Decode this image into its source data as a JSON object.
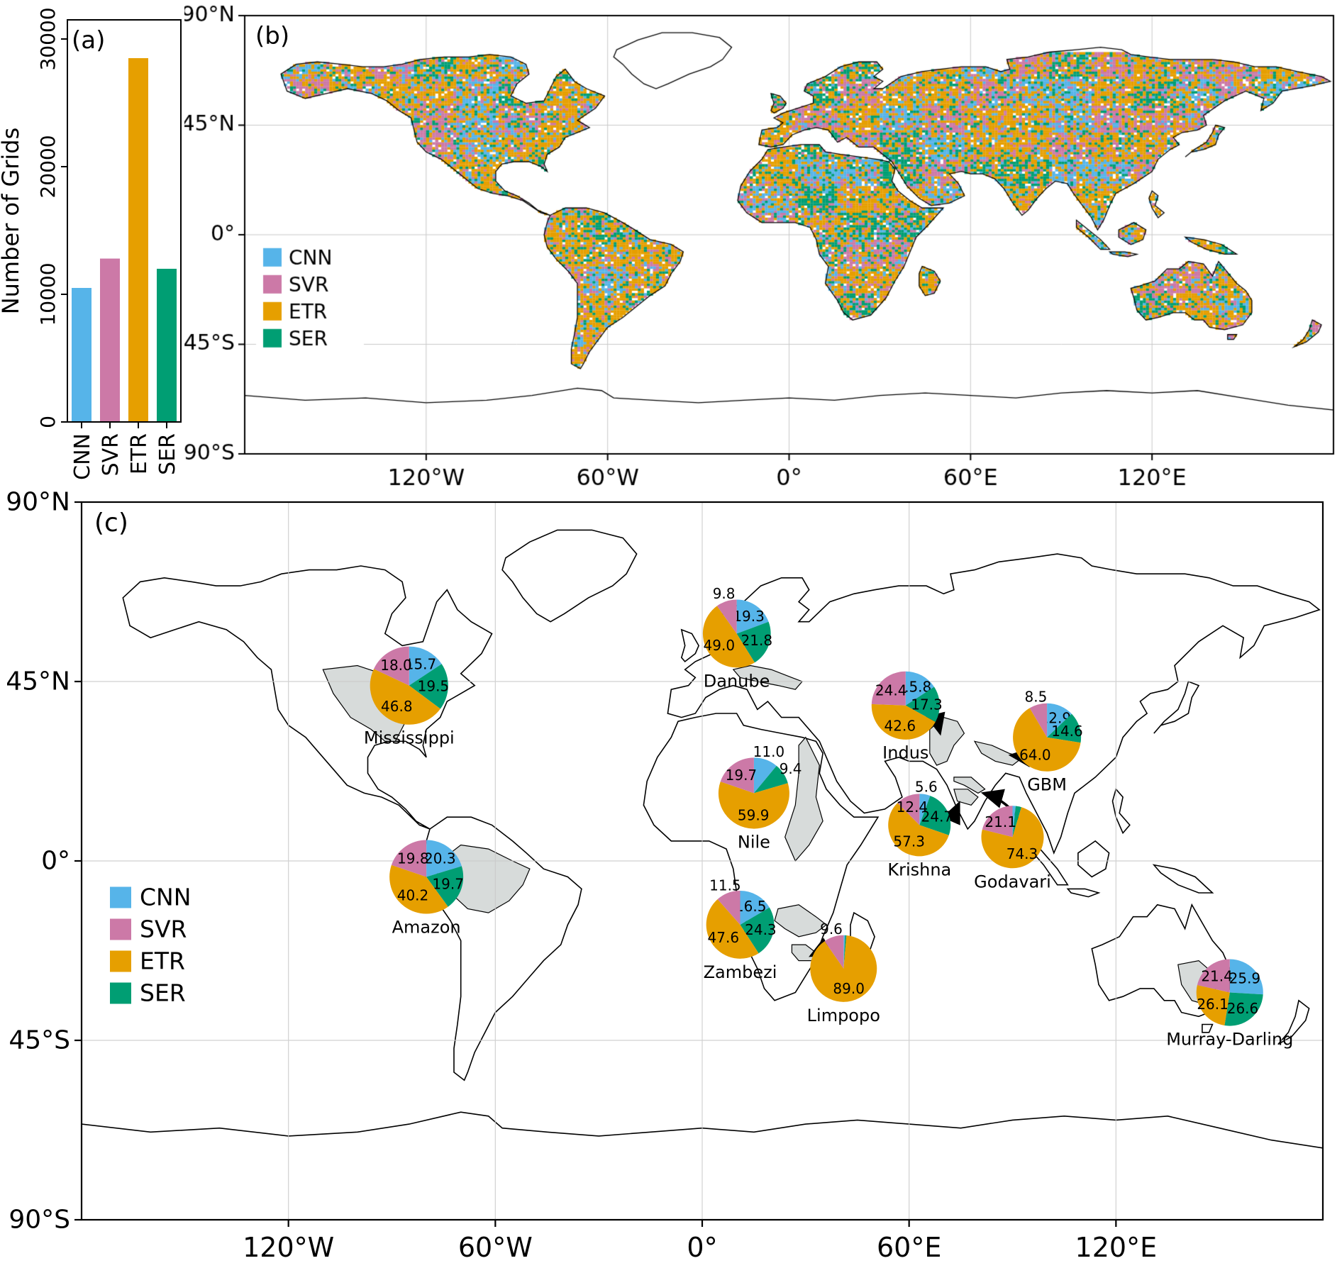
{
  "figure": {
    "models": [
      "CNN",
      "SVR",
      "ETR",
      "SER"
    ],
    "colors": {
      "CNN": "#56B4E9",
      "SVR": "#CC79A7",
      "ETR": "#E69F00",
      "SER": "#009E73"
    },
    "style_colors": {
      "grid": "#c9c9c9",
      "coastline": "#000000",
      "land_fill": "#ffffff",
      "basin_fill": "#d7dbda",
      "ocean_fill": "#ffffff"
    },
    "panel_a": {
      "label": "(a)",
      "ylabel": "Number of Grids",
      "yticks": [
        0,
        10000,
        20000,
        30000
      ],
      "ylim": [
        0,
        31500
      ]
    },
    "panel_b": {
      "label": "(b)",
      "description": "Best-performing model per land grid cell",
      "legend": [
        "CNN",
        "SVR",
        "ETR",
        "SER"
      ],
      "xticks": [
        "120°W",
        "60°W",
        "0°",
        "60°E",
        "120°E"
      ],
      "yticks": [
        "90°N",
        "45°N",
        "0°",
        "45°S",
        "90°S"
      ]
    },
    "panel_c": {
      "label": "(c)",
      "description": "Model share per major river basin",
      "legend": [
        "CNN",
        "SVR",
        "ETR",
        "SER"
      ],
      "xticks": [
        "120°W",
        "60°W",
        "0°",
        "60°E",
        "120°E"
      ],
      "yticks": [
        "90°N",
        "45°N",
        "0°",
        "45°S",
        "90°S"
      ]
    }
  },
  "chart_data": [
    {
      "id": "panel_a_bars",
      "type": "bar",
      "categories": [
        "CNN",
        "SVR",
        "ETR",
        "SER"
      ],
      "values": [
        10500,
        12800,
        28500,
        12000
      ],
      "title": "",
      "xlabel": "",
      "ylabel": "Number of Grids",
      "ylim": [
        0,
        31500
      ],
      "yticks": [
        0,
        10000,
        20000,
        30000
      ]
    },
    {
      "id": "panel_b_map",
      "type": "heatmap",
      "note": "Categorical world map: each land grid cell colored by best model (CNN/SVR/ETR/SER); cell counts given by panel_a_bars",
      "legend": [
        "CNN",
        "SVR",
        "ETR",
        "SER"
      ],
      "x_range_deg": [
        -180,
        180
      ],
      "y_range_deg": [
        -90,
        90
      ]
    },
    {
      "id": "panel_c_pies",
      "type": "pie",
      "note": "Model share (%) per river basin; slices clockwise from top",
      "order_clockwise_from_top": [
        "CNN",
        "SER",
        "ETR",
        "SVR"
      ],
      "label_min_percent": 5,
      "basins": [
        {
          "name": "Mississippi",
          "values": {
            "CNN": 15.7,
            "SVR": 18.0,
            "ETR": 46.8,
            "SER": 19.5
          }
        },
        {
          "name": "Amazon",
          "values": {
            "CNN": 20.3,
            "SVR": 19.8,
            "ETR": 40.2,
            "SER": 19.7
          }
        },
        {
          "name": "Danube",
          "values": {
            "CNN": 19.3,
            "SVR": 9.8,
            "ETR": 49.0,
            "SER": 21.8
          }
        },
        {
          "name": "Nile",
          "values": {
            "CNN": 11.0,
            "SVR": 19.7,
            "ETR": 59.9,
            "SER": 9.4
          }
        },
        {
          "name": "Zambezi",
          "values": {
            "CNN": 16.5,
            "SVR": 11.5,
            "ETR": 47.6,
            "SER": 24.3
          }
        },
        {
          "name": "Limpopo",
          "values": {
            "CNN": 0.7,
            "SVR": 9.6,
            "ETR": 89.0,
            "SER": 0.7
          }
        },
        {
          "name": "Indus",
          "values": {
            "CNN": 15.8,
            "SVR": 24.4,
            "ETR": 42.6,
            "SER": 17.3
          }
        },
        {
          "name": "Krishna",
          "values": {
            "CNN": 5.6,
            "SVR": 12.4,
            "ETR": 57.3,
            "SER": 24.7
          }
        },
        {
          "name": "GBM",
          "values": {
            "CNN": 12.9,
            "SVR": 8.5,
            "ETR": 64.0,
            "SER": 14.6
          }
        },
        {
          "name": "Godavari",
          "values": {
            "CNN": 1.6,
            "SVR": 21.1,
            "ETR": 74.3,
            "SER": 3.0
          }
        },
        {
          "name": "Murray-Darling",
          "values": {
            "CNN": 25.9,
            "SVR": 21.4,
            "ETR": 26.1,
            "SER": 26.6
          }
        }
      ]
    }
  ]
}
